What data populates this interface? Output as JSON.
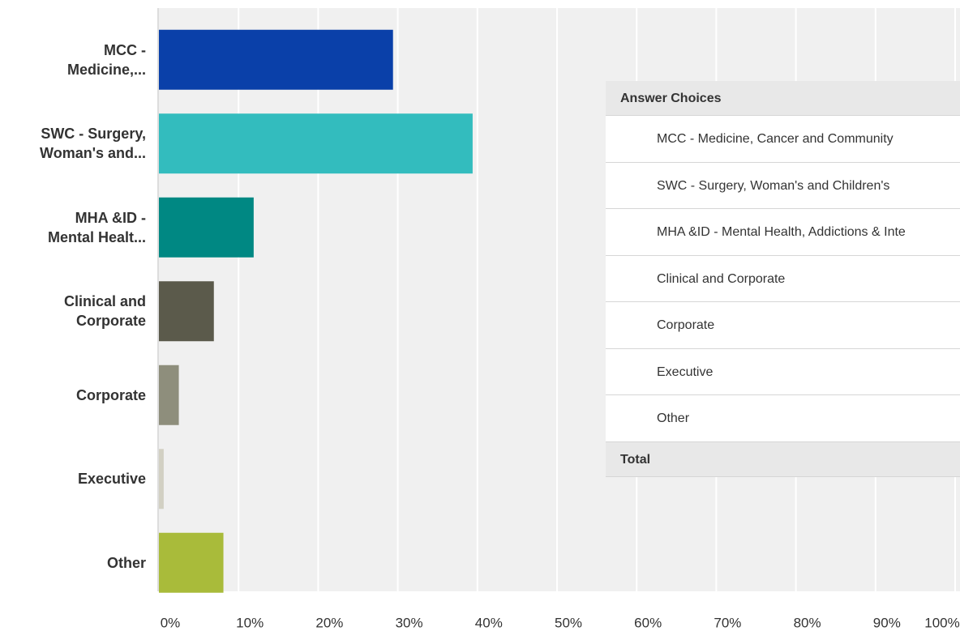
{
  "chart_data": {
    "type": "bar",
    "orientation": "horizontal",
    "categories": [
      "MCC -\nMedicine,...",
      "SWC - Surgery,\nWoman's and...",
      "MHA &ID -\nMental Healt...",
      "Clinical and\nCorporate",
      "Corporate",
      "Executive",
      "Other"
    ],
    "values": [
      29.4,
      39.4,
      11.9,
      6.9,
      2.5,
      0.6,
      8.1
    ],
    "colors": [
      "#0a40a9",
      "#33bcbe",
      "#008883",
      "#5b5a4b",
      "#8e8e7c",
      "#d2d0c3",
      "#a9bb3a"
    ],
    "xlim": [
      0,
      100
    ],
    "xticks": [
      {
        "value": 0,
        "label": "0%"
      },
      {
        "value": 10,
        "label": "10%"
      },
      {
        "value": 20,
        "label": "20%"
      },
      {
        "value": 30,
        "label": "30%"
      },
      {
        "value": 40,
        "label": "40%"
      },
      {
        "value": 50,
        "label": "50%"
      },
      {
        "value": 60,
        "label": "60%"
      },
      {
        "value": 70,
        "label": "70%"
      },
      {
        "value": 80,
        "label": "80%"
      },
      {
        "value": 90,
        "label": "90%"
      },
      {
        "value": 100,
        "label": "100%"
      }
    ],
    "grid": true
  },
  "table": {
    "header": "Answer Choices",
    "rows": [
      "MCC - Medicine, Cancer and Community",
      "SWC - Surgery, Woman's and Children's",
      "MHA &ID - Mental Health, Addictions & Inte",
      "Clinical and Corporate",
      "Corporate",
      "Executive",
      "Other"
    ],
    "footer": "Total"
  }
}
